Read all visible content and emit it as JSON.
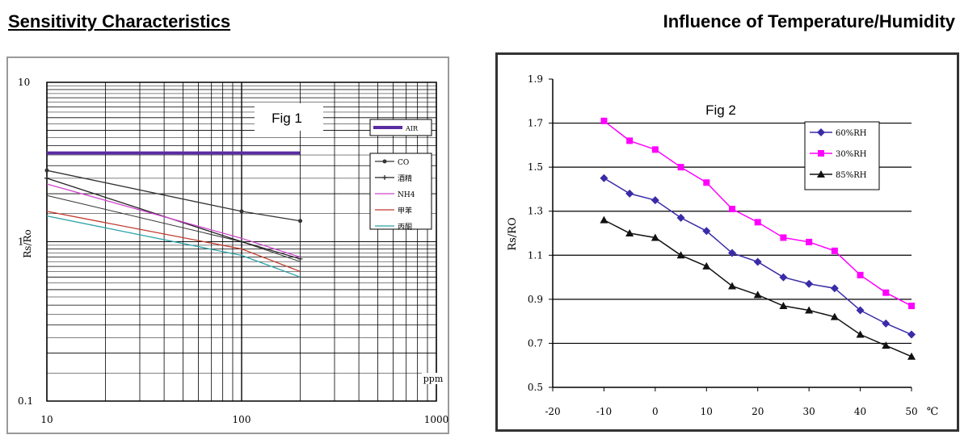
{
  "headings": {
    "left": "Sensitivity Characteristics",
    "right": "Influence of Temperature/Humidity"
  },
  "chart_data": [
    {
      "type": "line",
      "title": "Fig 1",
      "xlabel": "ppm",
      "ylabel": "Rs/Ro",
      "xscale": "log",
      "yscale": "log",
      "xlim": [
        10,
        1000
      ],
      "ylim": [
        0.1,
        10
      ],
      "x_tick_labels": [
        "10",
        "100",
        "1000"
      ],
      "y_tick_labels": [
        "0.1",
        "1",
        "10"
      ],
      "grid": true,
      "legend_position": "right",
      "series": [
        {
          "name": "AIR",
          "color": "#5a2ca0",
          "points": [
            [
              10,
              3.6
            ],
            [
              200,
              3.6
            ]
          ],
          "marker": "none"
        },
        {
          "name": "CO",
          "color": "#333333",
          "points": [
            [
              10,
              2.8
            ],
            [
              100,
              1.55
            ],
            [
              200,
              1.35
            ]
          ],
          "marker": "circle"
        },
        {
          "name": "酒精",
          "color": "#222222",
          "points": [
            [
              10,
              2.5
            ],
            [
              100,
              1.0
            ],
            [
              200,
              0.78
            ]
          ],
          "marker": "plus"
        },
        {
          "name": "NH4",
          "color": "#cc44cc",
          "points": [
            [
              10,
              2.3
            ],
            [
              100,
              1.05
            ],
            [
              200,
              0.8
            ]
          ],
          "marker": "none"
        },
        {
          "name": "甲苯",
          "color": "#c0392b",
          "points": [
            [
              10,
              1.55
            ],
            [
              100,
              0.9
            ],
            [
              200,
              0.65
            ]
          ],
          "marker": "none"
        },
        {
          "name": "丙酮",
          "color": "#2aa1a8",
          "points": [
            [
              10,
              1.45
            ],
            [
              100,
              0.82
            ],
            [
              200,
              0.6
            ]
          ],
          "marker": "none"
        }
      ],
      "extra_series_line": {
        "color": "#333333",
        "points": [
          [
            10,
            1.95
          ],
          [
            100,
            1.0
          ],
          [
            200,
            0.75
          ]
        ]
      }
    },
    {
      "type": "line",
      "title": "Fig 2",
      "xlabel": "℃",
      "ylabel": "Rs/RO",
      "xlim": [
        -20,
        50
      ],
      "ylim": [
        0.5,
        1.9
      ],
      "x_ticks": [
        -20,
        -10,
        0,
        10,
        20,
        30,
        40,
        50
      ],
      "y_ticks": [
        0.5,
        0.7,
        0.9,
        1.1,
        1.3,
        1.5,
        1.7,
        1.9
      ],
      "x_tick_labels": [
        "-20",
        "-10",
        "0",
        "10",
        "20",
        "30",
        "40",
        "50"
      ],
      "y_tick_labels": [
        "0.5",
        "0.7",
        "0.9",
        "1.1",
        "1.3",
        "1.5",
        "1.7",
        "1.9"
      ],
      "grid": true,
      "legend_position": "top-right",
      "x": [
        -10,
        -5,
        0,
        5,
        10,
        15,
        20,
        25,
        30,
        35,
        40,
        45,
        50
      ],
      "series": [
        {
          "name": "60%RH",
          "color": "#3a2ca8",
          "marker": "diamond",
          "values": [
            1.45,
            1.38,
            1.35,
            1.27,
            1.21,
            1.11,
            1.07,
            1.0,
            0.97,
            0.95,
            0.85,
            0.79,
            0.74
          ]
        },
        {
          "name": "30%RH",
          "color": "#ff00ff",
          "marker": "square",
          "values": [
            1.71,
            1.62,
            1.58,
            1.5,
            1.43,
            1.31,
            1.25,
            1.18,
            1.16,
            1.12,
            1.01,
            0.93,
            0.87
          ]
        },
        {
          "name": "85%RH",
          "color": "#111111",
          "marker": "triangle",
          "values": [
            1.26,
            1.2,
            1.18,
            1.1,
            1.05,
            0.96,
            0.92,
            0.87,
            0.85,
            0.82,
            0.74,
            0.69,
            0.64
          ]
        }
      ]
    }
  ]
}
